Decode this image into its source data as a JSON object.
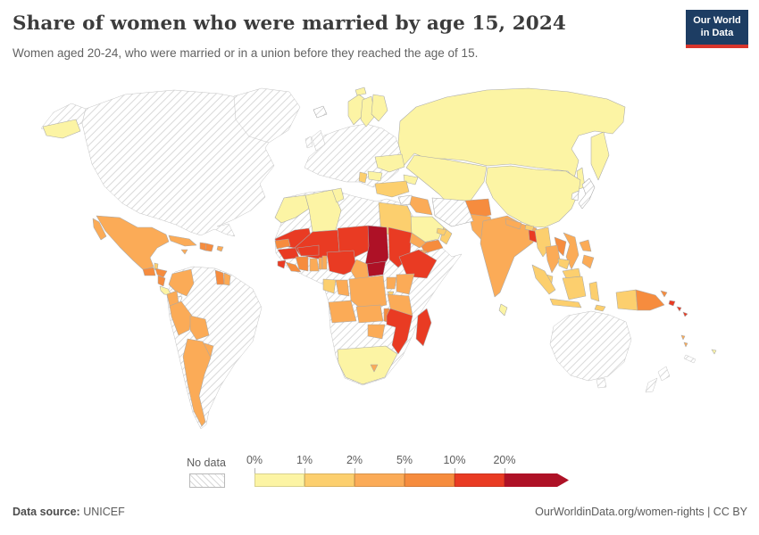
{
  "header": {
    "title": "Share of women who were married by age 15, 2024",
    "subtitle": "Women aged 20-24, who were married or in a union before they reached the age of 15.",
    "logo": {
      "line1": "Our World",
      "line2": "in Data",
      "bg_color": "#1d3d63",
      "accent_color": "#d8352c"
    }
  },
  "footer": {
    "source_label": "Data source:",
    "source_value": " UNICEF",
    "credit": "OurWorldinData.org/women-rights | CC BY"
  },
  "chart_data": {
    "type": "choropleth",
    "title": "Share of women who were married by age 15, 2024",
    "unit": "% of women aged 20-24 first married or in union before age 15",
    "legend": {
      "no_data_label": "No data",
      "no_data_pattern": "diagonal-hatch",
      "tick_labels": [
        "0%",
        "1%",
        "2%",
        "5%",
        "10%",
        "20%"
      ],
      "buckets": [
        {
          "id": "0-1",
          "label": "0%–1%",
          "color": "#fcf4a4"
        },
        {
          "id": "1-2",
          "label": "1%–2%",
          "color": "#fccf6e"
        },
        {
          "id": "2-5",
          "label": "2%–5%",
          "color": "#fbab57"
        },
        {
          "id": "5-10",
          "label": "5%–10%",
          "color": "#f68c3e"
        },
        {
          "id": "10-20",
          "label": "10%–20%",
          "color": "#e93b23"
        },
        {
          "id": "20+",
          "label": ">20%",
          "color": "#ae1126"
        }
      ]
    },
    "no_data_regions": [
      "United States",
      "Canada",
      "Greenland",
      "Iceland",
      "United Kingdom",
      "Ireland",
      "Western & Central Europe",
      "Brazil",
      "Venezuela",
      "Chile",
      "Uruguay",
      "Panama",
      "Libya",
      "Western Sahara",
      "Somalia",
      "South Sudan",
      "Namibia",
      "Botswana",
      "Iran",
      "Syria",
      "Japan",
      "South Korea",
      "Australia",
      "New Zealand",
      "New Caledonia"
    ],
    "country_values": {
      "Mexico": "2-5",
      "Guatemala": "5-10",
      "Belize": "1-2",
      "Honduras": "5-10",
      "Nicaragua": "5-10",
      "Costa Rica": "0-1",
      "Panama": "no-data",
      "Cuba": "2-5",
      "Jamaica": "2-5",
      "Haiti": "5-10",
      "Dominican Republic": "5-10",
      "Puerto Rico": "2-5",
      "Colombia": "2-5",
      "Ecuador": "2-5",
      "Peru": "2-5",
      "Bolivia": "2-5",
      "Paraguay": "2-5",
      "Argentina": "2-5",
      "Guyana": "5-10",
      "Suriname": "2-5",
      "Iceland": "no-data",
      "Norway": "0-1",
      "Sweden": "0-1",
      "Finland": "0-1",
      "Ukraine": "0-1",
      "Romania": "0-1",
      "Serbia": "1-2",
      "Russia": "0-1",
      "Georgia": "0-1",
      "Kazakhstan": "0-1",
      "Turkey": "1-2",
      "Syria": "no-data",
      "Jordan": "0-1",
      "Iraq": "2-5",
      "Iran": "no-data",
      "Saudi Arabia": "0-1",
      "Yemen": "5-10",
      "Oman": "1-2",
      "United Arab Emirates": "1-2",
      "Afghanistan": "5-10",
      "Pakistan": "2-5",
      "India": "2-5",
      "Nepal": "2-5",
      "Bhutan": "1-2",
      "Bangladesh": "10-20",
      "Sri Lanka": "0-1",
      "China": "0-1",
      "South Korea": "no-data",
      "Japan": "no-data",
      "Myanmar": "1-2",
      "Thailand": "2-5",
      "Laos": "5-10",
      "Vietnam": "2-5",
      "Cambodia": "1-2",
      "Malaysia": "1-2",
      "Indonesia": "1-2",
      "Philippines": "2-5",
      "Timor-Leste": "1-2",
      "Papua New Guinea": "5-10",
      "Solomon Islands": "10-20",
      "Vanuatu": "2-5",
      "Fiji": "0-1",
      "Morocco": "0-1",
      "Algeria": "0-1",
      "Tunisia": "0-1",
      "Egypt": "1-2",
      "Mauritania": "10-20",
      "Mali": "10-20",
      "Niger": "10-20",
      "Chad": "20+",
      "Sudan": "10-20",
      "Eritrea": "2-5",
      "Djibouti": "2-5",
      "Ethiopia": "10-20",
      "Senegal": "5-10",
      "Guinea": "10-20",
      "Sierra Leone": "10-20",
      "Liberia": "5-10",
      "Cote d'Ivoire": "5-10",
      "Ghana": "2-5",
      "Togo": "2-5",
      "Benin": "2-5",
      "Burkina Faso": "10-20",
      "Nigeria": "10-20",
      "Cameroon": "2-5",
      "Central African Republic": "20+",
      "Gabon": "1-2",
      "Republic of Congo": "2-5",
      "Democratic Republic of Congo": "2-5",
      "Uganda": "2-5",
      "Kenya": "2-5",
      "Rwanda": "1-2",
      "Tanzania": "2-5",
      "Angola": "2-5",
      "Zambia": "2-5",
      "Malawi": "5-10",
      "Mozambique": "10-20",
      "Zimbabwe": "2-5",
      "South Africa": "0-1",
      "Lesotho": "2-5",
      "Madagascar": "10-20"
    }
  }
}
